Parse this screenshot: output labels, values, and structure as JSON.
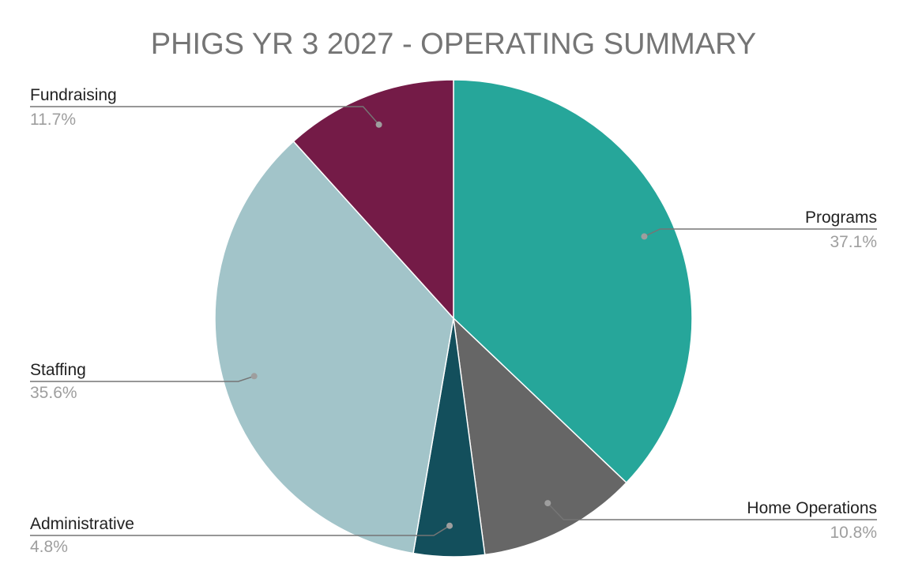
{
  "chart_data": {
    "type": "pie",
    "title": "PHIGS YR 3 2027 - OPERATING SUMMARY",
    "slices": [
      {
        "label": "Programs",
        "value": 37.1,
        "display": "37.1%",
        "color": "#26a69a"
      },
      {
        "label": "Home Operations",
        "value": 10.8,
        "display": "10.8%",
        "color": "#666666"
      },
      {
        "label": "Administrative",
        "value": 4.8,
        "display": "4.8%",
        "color": "#134f5c"
      },
      {
        "label": "Staffing",
        "value": 35.6,
        "display": "35.6%",
        "color": "#a2c4c9"
      },
      {
        "label": "Fundraising",
        "value": 11.7,
        "display": "11.7%",
        "color": "#741b47"
      }
    ],
    "legend": "none",
    "start_angle": "12 o'clock, clockwise"
  }
}
